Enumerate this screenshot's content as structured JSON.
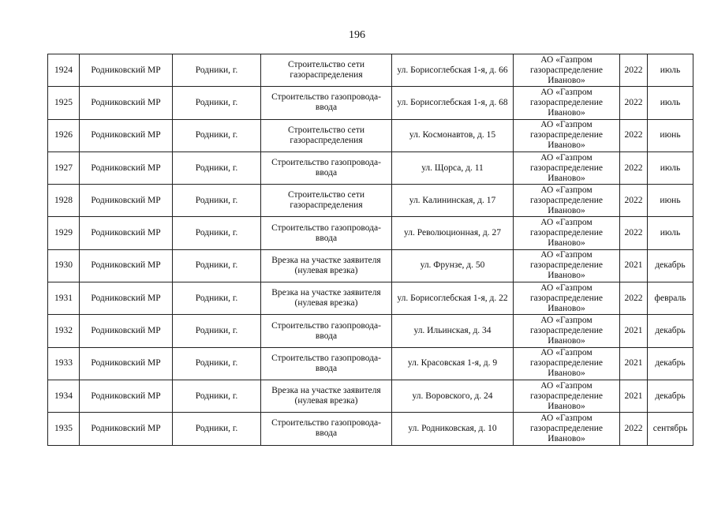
{
  "page_number": "196",
  "rows": [
    {
      "num": "1924",
      "district": "Родниковский МР",
      "city": "Родники, г.",
      "work": "Строительство сети газораспределения",
      "address": "ул. Борисоглебская 1-я, д. 66",
      "org": "АО «Газпром газораспределение Иваново»",
      "year": "2022",
      "month": "июль"
    },
    {
      "num": "1925",
      "district": "Родниковский МР",
      "city": "Родники, г.",
      "work": "Строительство газопровода-ввода",
      "address": "ул. Борисоглебская 1-я, д. 68",
      "org": "АО «Газпром газораспределение Иваново»",
      "year": "2022",
      "month": "июль"
    },
    {
      "num": "1926",
      "district": "Родниковский МР",
      "city": "Родники, г.",
      "work": "Строительство сети газораспределения",
      "address": "ул. Космонавтов, д. 15",
      "org": "АО «Газпром газораспределение Иваново»",
      "year": "2022",
      "month": "июнь"
    },
    {
      "num": "1927",
      "district": "Родниковский МР",
      "city": "Родники, г.",
      "work": "Строительство газопровода-ввода",
      "address": "ул. Щорса, д. 11",
      "org": "АО «Газпром газораспределение Иваново»",
      "year": "2022",
      "month": "июль"
    },
    {
      "num": "1928",
      "district": "Родниковский МР",
      "city": "Родники, г.",
      "work": "Строительство сети газораспределения",
      "address": "ул. Калининская, д. 17",
      "org": "АО «Газпром газораспределение Иваново»",
      "year": "2022",
      "month": "июнь"
    },
    {
      "num": "1929",
      "district": "Родниковский МР",
      "city": "Родники, г.",
      "work": "Строительство газопровода-ввода",
      "address": "ул. Революционная, д. 27",
      "org": "АО «Газпром газораспределение Иваново»",
      "year": "2022",
      "month": "июль"
    },
    {
      "num": "1930",
      "district": "Родниковский МР",
      "city": "Родники, г.",
      "work": "Врезка на участке заявителя (нулевая врезка)",
      "address": "ул.  Фрунзе, д. 50",
      "org": "АО «Газпром газораспределение Иваново»",
      "year": "2021",
      "month": "декабрь"
    },
    {
      "num": "1931",
      "district": "Родниковский МР",
      "city": "Родники, г.",
      "work": "Врезка на участке заявителя (нулевая врезка)",
      "address": "ул. Борисоглебская 1-я, д. 22",
      "org": "АО «Газпром газораспределение Иваново»",
      "year": "2022",
      "month": "февраль"
    },
    {
      "num": "1932",
      "district": "Родниковский МР",
      "city": "Родники, г.",
      "work": "Строительство газопровода-ввода",
      "address": "ул. Ильинская, д. 34",
      "org": "АО «Газпром газораспределение Иваново»",
      "year": "2021",
      "month": "декабрь"
    },
    {
      "num": "1933",
      "district": "Родниковский МР",
      "city": "Родники, г.",
      "work": "Строительство газопровода-ввода",
      "address": "ул. Красовская 1-я, д. 9",
      "org": "АО «Газпром газораспределение Иваново»",
      "year": "2021",
      "month": "декабрь"
    },
    {
      "num": "1934",
      "district": "Родниковский МР",
      "city": "Родники, г.",
      "work": "Врезка на участке заявителя (нулевая врезка)",
      "address": "ул. Воровского, д. 24",
      "org": "АО «Газпром газораспределение Иваново»",
      "year": "2021",
      "month": "декабрь"
    },
    {
      "num": "1935",
      "district": "Родниковский МР",
      "city": "Родники, г.",
      "work": "Строительство газопровода-ввода",
      "address": "ул. Родниковская, д. 10",
      "org": "АО «Газпром газораспределение Иваново»",
      "year": "2022",
      "month": "сентябрь"
    }
  ]
}
